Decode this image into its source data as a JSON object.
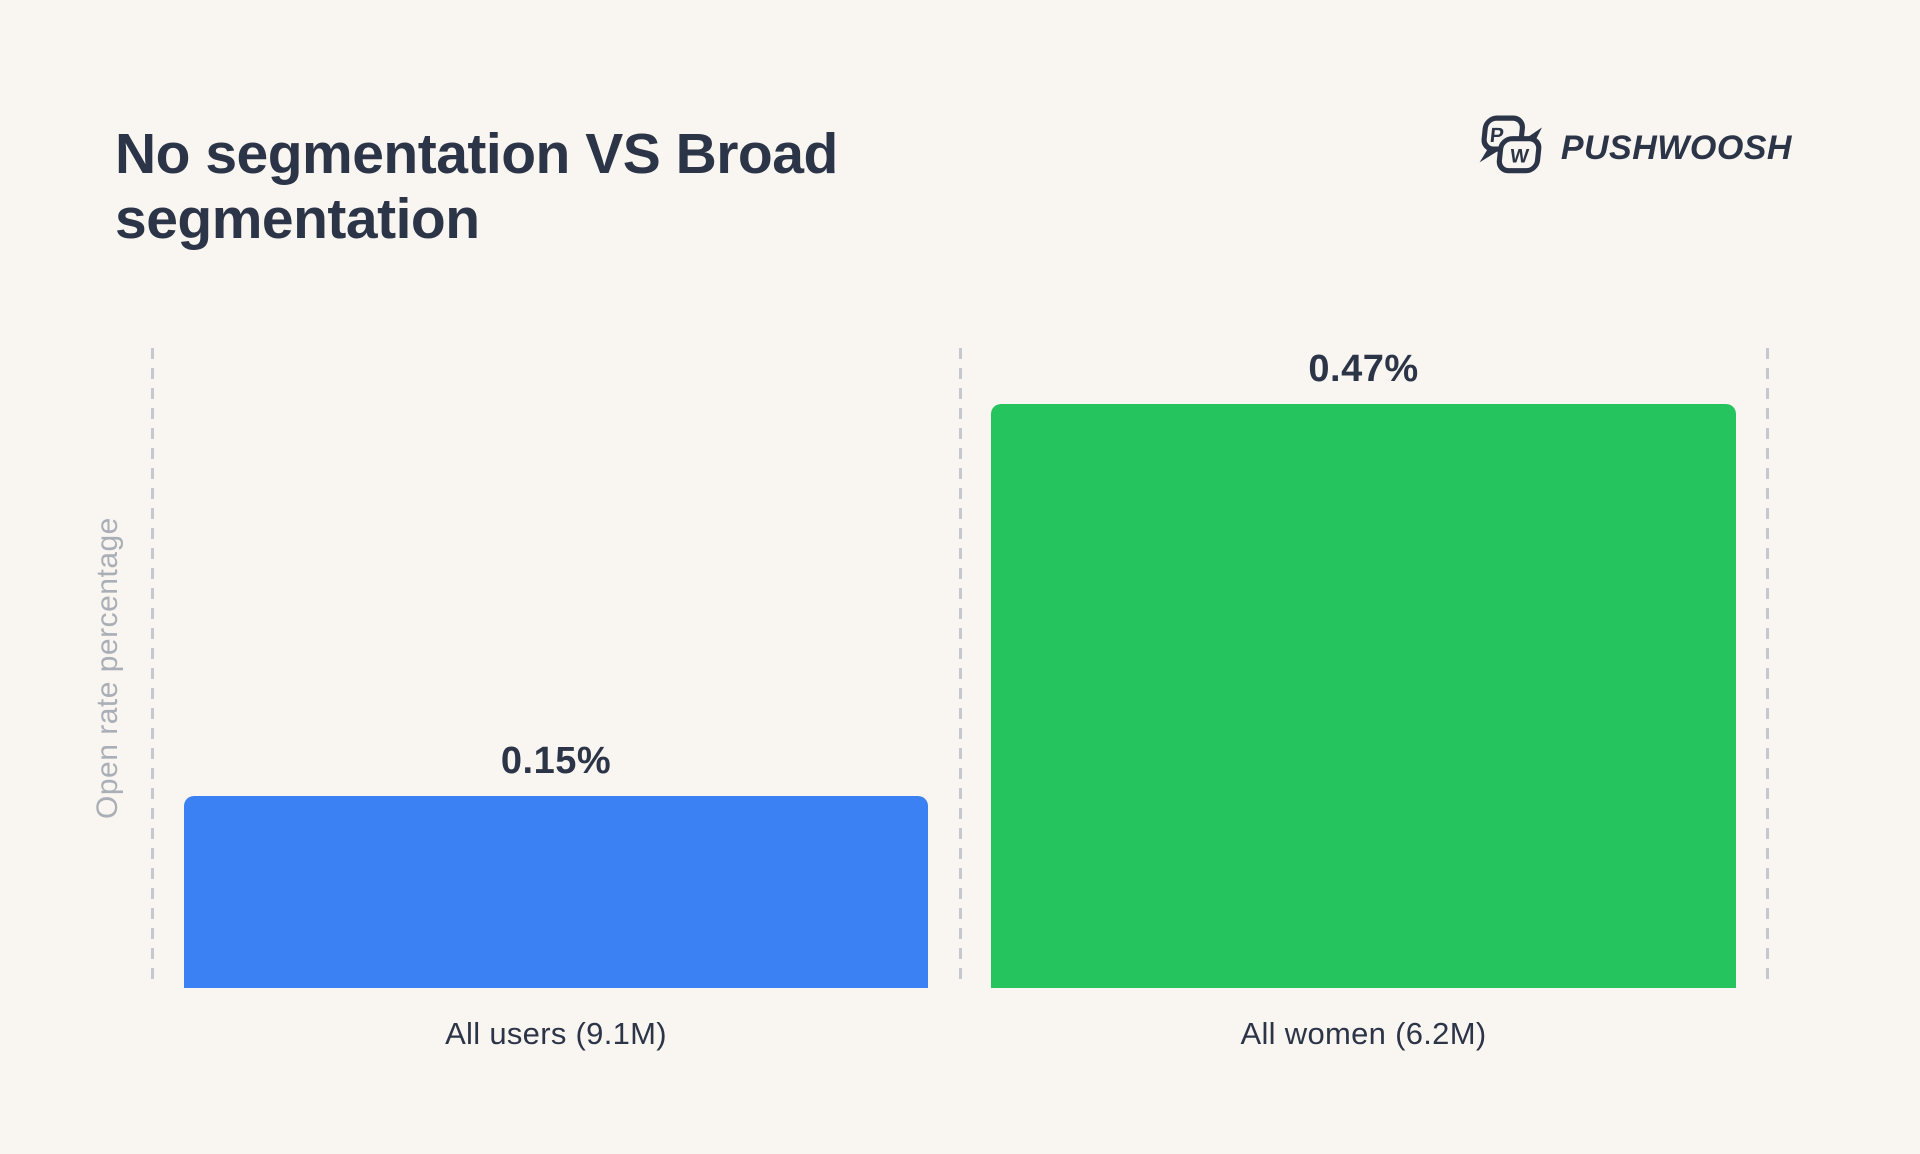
{
  "page": {
    "background": "#f9f5f0"
  },
  "header": {
    "title": "No segmentation VS Broad segmentation",
    "brand": {
      "name": "PUSHWOOSH",
      "icon": "pushwoosh-speech-bubbles-logo",
      "letters": [
        "P",
        "W"
      ]
    }
  },
  "chart_data": {
    "type": "bar",
    "title": "No segmentation VS Broad segmentation",
    "xlabel": "",
    "ylabel": "Open rate percentage",
    "categories": [
      "All users (9.1M)",
      "All women (6.2M)"
    ],
    "values": [
      0.15,
      0.47
    ],
    "value_labels": [
      "0.15%",
      "0.47%"
    ],
    "bar_colors": [
      "#3b81f3",
      "#25c45f"
    ],
    "ylim": [
      0,
      0.5
    ],
    "grid": false,
    "separators": "dashed-vertical-lines",
    "legend": false
  },
  "colors": {
    "text_dark": "#2c3547",
    "text_gray": "#a9aeb7",
    "dash_gray": "#c5c9cf",
    "bar_blue": "#3b81f3",
    "bar_green": "#25c45f",
    "background": "#f9f5f0"
  }
}
